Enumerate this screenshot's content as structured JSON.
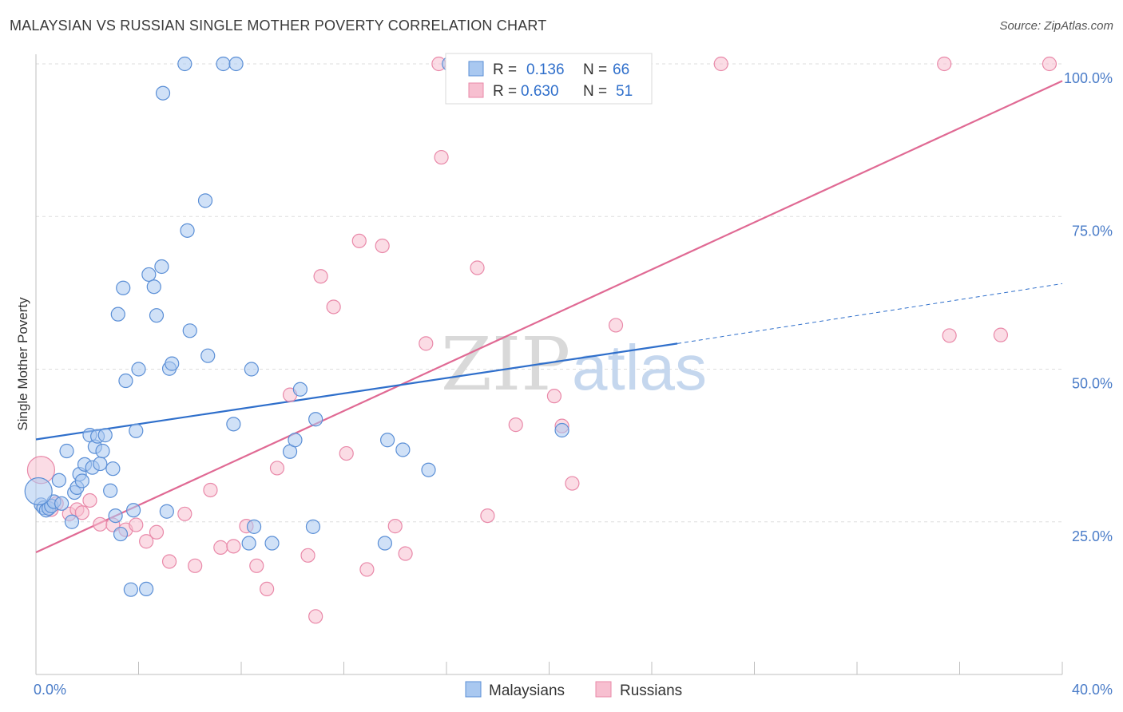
{
  "title": "MALAYSIAN VS RUSSIAN SINGLE MOTHER POVERTY CORRELATION CHART",
  "source": "Source: ZipAtlas.com",
  "watermark": {
    "zip": "ZIP",
    "atlas": "atlas"
  },
  "colors": {
    "malaysians_fill": "#a9c8f0",
    "malaysians_stroke": "#5b8fd6",
    "malaysians_line": "#2f6fcb",
    "russians_fill": "#f7bfd0",
    "russians_stroke": "#e989a9",
    "russians_line": "#e06a94",
    "grid": "#dddddd",
    "tick_label": "#4a7cc8"
  },
  "legend": {
    "rows": [
      {
        "r_label": "R =",
        "r_value": "0.136",
        "n_label": "N =",
        "n_value": "66"
      },
      {
        "r_label": "R =",
        "r_value": "0.630",
        "n_label": "N =",
        "n_value": "51"
      }
    ]
  },
  "chart_data": {
    "type": "scatter",
    "title": "MALAYSIAN VS RUSSIAN SINGLE MOTHER POVERTY CORRELATION CHART",
    "xlabel": "",
    "ylabel": "Single Mother Poverty",
    "xlim": [
      0,
      40
    ],
    "ylim": [
      0,
      105
    ],
    "x_tick_labels": [
      "0.0%",
      "40.0%"
    ],
    "y_ticks": [
      25,
      50,
      75,
      100
    ],
    "y_tick_labels": [
      "25.0%",
      "50.0%",
      "75.0%",
      "100.0%"
    ],
    "grid": true,
    "legend_position": "top-center",
    "series": [
      {
        "name": "Malaysians",
        "points": [
          [
            0.2,
            27.8
          ],
          [
            0.3,
            27.3
          ],
          [
            0.4,
            26.9
          ],
          [
            0.5,
            27.2
          ],
          [
            0.6,
            27.6
          ],
          [
            0.7,
            28.3
          ],
          [
            0.9,
            31.8
          ],
          [
            1.0,
            28.0
          ],
          [
            1.2,
            36.6
          ],
          [
            1.4,
            25.0
          ],
          [
            1.5,
            29.8
          ],
          [
            1.6,
            30.6
          ],
          [
            1.7,
            32.8
          ],
          [
            1.8,
            31.7
          ],
          [
            1.9,
            34.4
          ],
          [
            2.1,
            39.2
          ],
          [
            2.2,
            33.9
          ],
          [
            2.3,
            37.3
          ],
          [
            2.4,
            39.0
          ],
          [
            2.5,
            34.5
          ],
          [
            2.6,
            36.6
          ],
          [
            2.7,
            39.2
          ],
          [
            2.9,
            30.1
          ],
          [
            3.0,
            33.7
          ],
          [
            3.1,
            26.0
          ],
          [
            3.3,
            23.0
          ],
          [
            3.2,
            59.0
          ],
          [
            3.4,
            63.3
          ],
          [
            3.5,
            48.1
          ],
          [
            3.7,
            13.9
          ],
          [
            3.8,
            26.9
          ],
          [
            3.9,
            39.9
          ],
          [
            4.0,
            50.0
          ],
          [
            4.3,
            14.0
          ],
          [
            4.4,
            65.5
          ],
          [
            4.6,
            63.5
          ],
          [
            4.7,
            58.8
          ],
          [
            4.9,
            66.8
          ],
          [
            4.95,
            95.2
          ],
          [
            5.1,
            26.7
          ],
          [
            5.2,
            50.1
          ],
          [
            5.3,
            50.9
          ],
          [
            5.8,
            100.0
          ],
          [
            5.9,
            72.7
          ],
          [
            6.0,
            56.3
          ],
          [
            6.6,
            77.6
          ],
          [
            6.7,
            52.2
          ],
          [
            7.3,
            100.0
          ],
          [
            7.8,
            100.0
          ],
          [
            7.7,
            41.0
          ],
          [
            8.3,
            21.5
          ],
          [
            8.4,
            50.0
          ],
          [
            8.5,
            24.2
          ],
          [
            9.2,
            21.5
          ],
          [
            9.9,
            36.5
          ],
          [
            10.1,
            38.4
          ],
          [
            10.3,
            46.7
          ],
          [
            10.8,
            24.2
          ],
          [
            10.9,
            41.8
          ],
          [
            13.6,
            21.5
          ],
          [
            13.7,
            38.4
          ],
          [
            14.3,
            36.8
          ],
          [
            15.3,
            33.5
          ],
          [
            16.1,
            100.0
          ],
          [
            20.5,
            40.0
          ],
          [
            0.1,
            30.0
          ]
        ],
        "trend": {
          "x": [
            0,
            25
          ],
          "y": [
            38.5,
            54.2
          ],
          "dashed_extension": {
            "x": [
              25,
              40
            ],
            "y": [
              54.2,
              64.0
            ]
          }
        }
      },
      {
        "name": "Russians",
        "points": [
          [
            0.2,
            33.5
          ],
          [
            0.8,
            28.0
          ],
          [
            1.3,
            26.3
          ],
          [
            1.6,
            27.0
          ],
          [
            2.1,
            28.5
          ],
          [
            2.5,
            24.6
          ],
          [
            3.0,
            24.5
          ],
          [
            3.5,
            23.7
          ],
          [
            3.9,
            24.5
          ],
          [
            4.3,
            21.8
          ],
          [
            4.7,
            23.3
          ],
          [
            5.2,
            18.5
          ],
          [
            5.8,
            26.3
          ],
          [
            6.2,
            17.8
          ],
          [
            6.8,
            30.2
          ],
          [
            7.2,
            20.8
          ],
          [
            7.7,
            21.0
          ],
          [
            8.2,
            24.3
          ],
          [
            8.6,
            17.8
          ],
          [
            9.0,
            14.0
          ],
          [
            9.4,
            33.8
          ],
          [
            9.9,
            45.8
          ],
          [
            10.6,
            19.5
          ],
          [
            10.9,
            9.5
          ],
          [
            11.1,
            65.2
          ],
          [
            11.6,
            60.2
          ],
          [
            12.1,
            36.2
          ],
          [
            12.6,
            71.0
          ],
          [
            12.9,
            17.2
          ],
          [
            13.5,
            70.2
          ],
          [
            14.0,
            24.3
          ],
          [
            14.4,
            19.8
          ],
          [
            15.2,
            54.2
          ],
          [
            15.7,
            100.0
          ],
          [
            15.8,
            84.7
          ],
          [
            16.6,
            100.0
          ],
          [
            17.2,
            66.6
          ],
          [
            17.6,
            26.0
          ],
          [
            18.7,
            40.9
          ],
          [
            20.2,
            45.6
          ],
          [
            20.5,
            40.7
          ],
          [
            20.9,
            31.3
          ],
          [
            22.3,
            100.0
          ],
          [
            22.6,
            57.2
          ],
          [
            26.7,
            100.0
          ],
          [
            35.4,
            100.0
          ],
          [
            35.6,
            55.5
          ],
          [
            37.6,
            55.6
          ],
          [
            39.5,
            100.0
          ],
          [
            1.8,
            26.5
          ],
          [
            0.6,
            27.0
          ]
        ],
        "trend": {
          "x": [
            0,
            40
          ],
          "y": [
            20.0,
            97.2
          ]
        }
      }
    ]
  },
  "bottom_legend": {
    "items": [
      "Malaysians",
      "Russians"
    ]
  }
}
